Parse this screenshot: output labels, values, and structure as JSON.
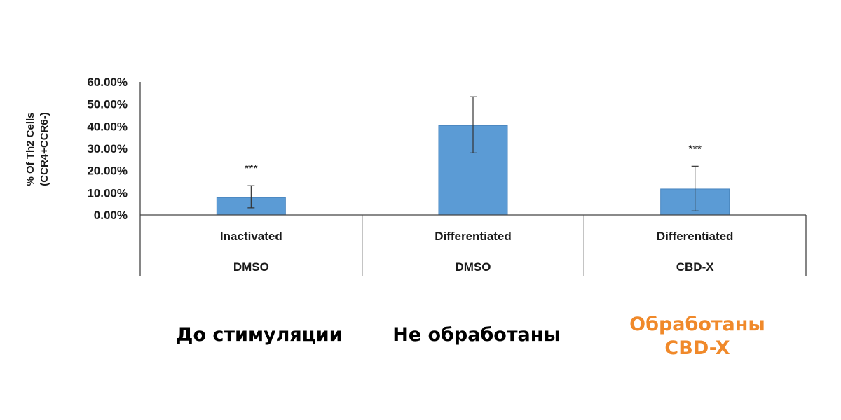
{
  "chart_data": {
    "type": "bar",
    "categories": [
      {
        "line1": "Inactivated",
        "line2": "DMSO"
      },
      {
        "line1": "Differentiated",
        "line2": "DMSO"
      },
      {
        "line1": "Differentiated",
        "line2": "CBD-X"
      }
    ],
    "values": [
      7.8,
      40.3,
      11.7
    ],
    "error_bars": [
      {
        "low": 3.2,
        "high": 13.2
      },
      {
        "low": 28.0,
        "high": 53.3
      },
      {
        "low": 1.8,
        "high": 22.0
      }
    ],
    "significance": [
      "***",
      "",
      "***"
    ],
    "ylabel_line1": "% Of Th2 Cells",
    "ylabel_line2": "(CCR4+CCR6-)",
    "ylim": [
      0,
      60
    ],
    "yticks": [
      "0.00%",
      "10.00%",
      "20.00%",
      "30.00%",
      "40.00%",
      "50.00%",
      "60.00%"
    ],
    "grid": false,
    "bar_color": "#5b9bd5"
  },
  "captions": [
    {
      "text": "До стимуляции",
      "color": "#000000"
    },
    {
      "text": "Не обработаны",
      "color": "#000000"
    },
    {
      "text": "Обработаны\nCBD-X",
      "color": "#f0892a"
    }
  ]
}
